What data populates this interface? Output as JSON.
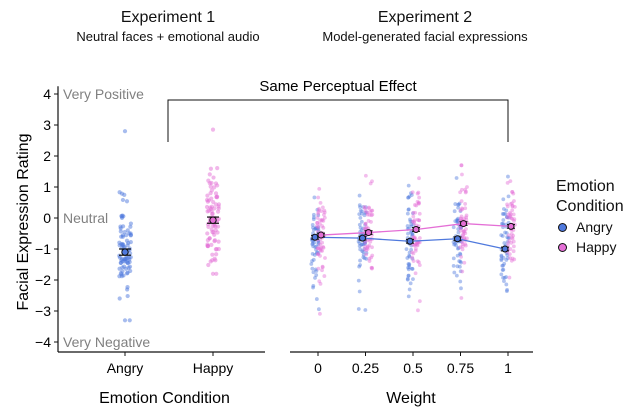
{
  "panel1": {
    "title": "Experiment 1",
    "subtitle": "Neutral faces + emotional audio"
  },
  "panel2": {
    "title": "Experiment 2",
    "subtitle": "Model-generated facial expressions"
  },
  "bracket_label": "Same Perceptual Effect",
  "legend": {
    "title_line1": "Emotion",
    "title_line2": "Condition",
    "items": [
      {
        "label": "Angry",
        "color": "#4f79dd"
      },
      {
        "label": "Happy",
        "color": "#e46fd6"
      }
    ]
  },
  "chart_data": [
    {
      "type": "scatter",
      "title": "Experiment 1",
      "subtitle": "Neutral faces + emotional audio",
      "xlabel": "Emotion Condition",
      "ylabel": "Facial Expression Rating",
      "categories": [
        "Angry",
        "Happy"
      ],
      "ylim": [
        -4.2,
        4.3
      ],
      "yticks": [
        -4,
        -3,
        -2,
        -1,
        0,
        1,
        2,
        3,
        4
      ],
      "y_anchor_labels": [
        {
          "y": 4,
          "text": "Very Positive"
        },
        {
          "y": 0,
          "text": "Neutral"
        },
        {
          "y": -4,
          "text": "Very Negative"
        }
      ],
      "series": [
        {
          "name": "Angry",
          "color": "#4f79dd",
          "mean": -1.1,
          "se": 0.1,
          "min": -3.3,
          "max": 2.8
        },
        {
          "name": "Happy",
          "color": "#e46fd6",
          "mean": -0.07,
          "se": 0.1,
          "min": -1.8,
          "max": 2.85
        }
      ]
    },
    {
      "type": "line",
      "title": "Experiment 2",
      "subtitle": "Model-generated facial expressions",
      "xlabel": "Weight",
      "x": [
        0,
        0.25,
        0.5,
        0.75,
        1
      ],
      "xtick_labels": [
        "0",
        "0.25",
        "0.5",
        "0.75",
        "1"
      ],
      "ylim": [
        -4.2,
        4.3
      ],
      "series": [
        {
          "name": "Angry",
          "color": "#4f79dd",
          "values": [
            -0.62,
            -0.65,
            -0.75,
            -0.67,
            -1.0
          ],
          "se": 0.06
        },
        {
          "name": "Happy",
          "color": "#e46fd6",
          "values": [
            -0.55,
            -0.47,
            -0.37,
            -0.18,
            -0.27
          ],
          "se": 0.06
        }
      ]
    }
  ]
}
